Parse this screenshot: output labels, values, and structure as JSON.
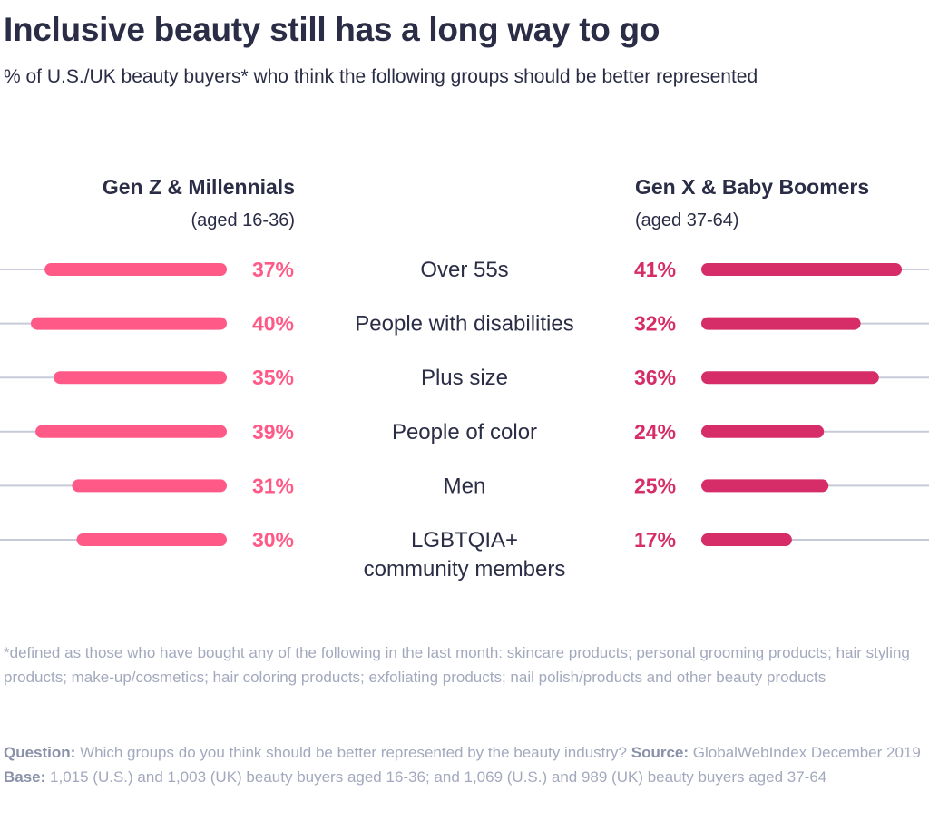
{
  "title": "Inclusive beauty still has a long way to go",
  "subtitle": "% of U.S./UK beauty buyers* who think the following groups should be better represented",
  "chart_data": {
    "type": "bar",
    "categories": [
      "Over 55s",
      "People with disabilities",
      "Plus size",
      "People of color",
      "Men",
      "LGBTQIA+ community members"
    ],
    "category_lines": [
      [
        "Over 55s"
      ],
      [
        "People with disabilities"
      ],
      [
        "Plus size"
      ],
      [
        "People of color"
      ],
      [
        "Men"
      ],
      [
        "LGBTQIA+",
        "community members"
      ]
    ],
    "series": [
      {
        "name": "Gen Z & Millennials",
        "sublabel": "(aged 16-36)",
        "values": [
          37,
          40,
          35,
          39,
          31,
          30
        ],
        "labels": [
          "37%",
          "40%",
          "35%",
          "39%",
          "31%",
          "30%"
        ],
        "color": "#ff5a87"
      },
      {
        "name": "Gen X & Baby Boomers",
        "sublabel": "(aged 37-64)",
        "values": [
          41,
          32,
          36,
          24,
          25,
          17
        ],
        "labels": [
          "41%",
          "32%",
          "36%",
          "24%",
          "25%",
          "17%"
        ],
        "color": "#d62c68"
      }
    ],
    "unit": "%",
    "track_color": "#c7cbd9"
  },
  "footnote": "*defined as those who have bought any of the following in the last month: skincare products; personal grooming products; hair styling products; make-up/cosmetics; hair coloring products; exfoliating products; nail polish/products and other beauty products",
  "source": {
    "question_label": "Question:",
    "question_text": "Which groups do you think should be better represented by the beauty industry?",
    "source_label": "Source:",
    "source_text": "GlobalWebIndex December 2019",
    "base_label": "Base:",
    "base_text": "1,015 (U.S.) and 1,003 (UK) beauty buyers aged 16-36; and 1,069 (U.S.) and 989 (UK) beauty buyers aged 37-64"
  }
}
